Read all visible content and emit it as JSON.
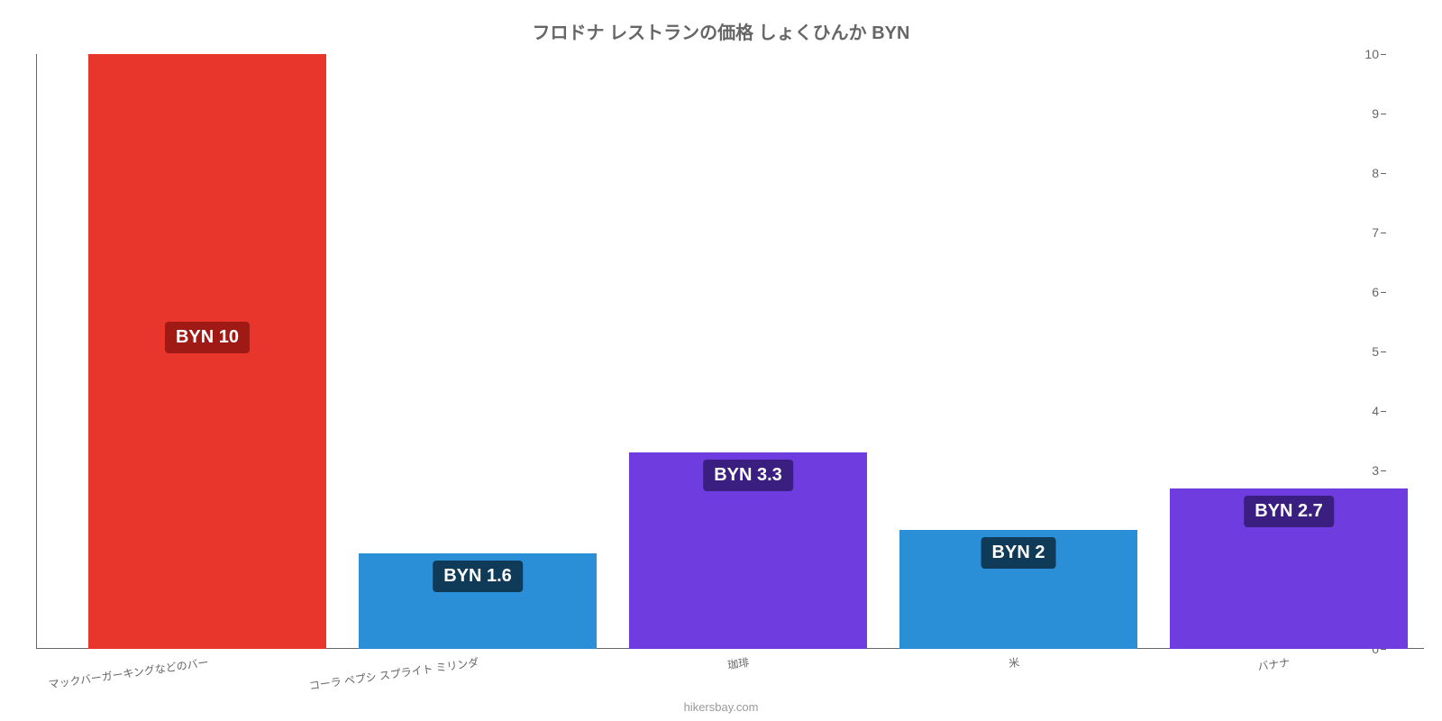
{
  "chart": {
    "type": "bar",
    "title": "フロドナ レストランの価格 しょくひんか BYN",
    "title_color": "#666666",
    "title_fontsize": 20,
    "background_color": "#ffffff",
    "axis_color": "#666666",
    "ylim": [
      0,
      10
    ],
    "yticks": [
      0,
      1,
      2,
      3,
      4,
      5,
      6,
      7,
      8,
      9,
      10
    ],
    "label_fontsize": 14,
    "bar_width_ratio": 0.88,
    "value_label_fontsize": 20,
    "categories": [
      "マックバーガーキングなどのバー",
      "コーラ ペプシ スプライト ミリンダ",
      "珈琲",
      "米",
      "バナナ"
    ],
    "values": [
      10,
      1.6,
      3.3,
      2.0,
      2.7
    ],
    "value_labels": [
      "BYN 10",
      "BYN 1.6",
      "BYN 3.3",
      "BYN 2",
      "BYN 2.7"
    ],
    "bar_colors": [
      "#e8362d",
      "#2a8fd6",
      "#6f3ce0",
      "#2a8fd6",
      "#6f3ce0"
    ],
    "value_label_bg": [
      "#a01a15",
      "#0f3a58",
      "#3a1e80",
      "#0f3a58",
      "#3a1e80"
    ],
    "value_label_text": "#ffffff",
    "x_label_color": "#666666",
    "x_label_fontsize": 12,
    "attribution": "hikersbay.com",
    "attribution_color": "#999999"
  }
}
